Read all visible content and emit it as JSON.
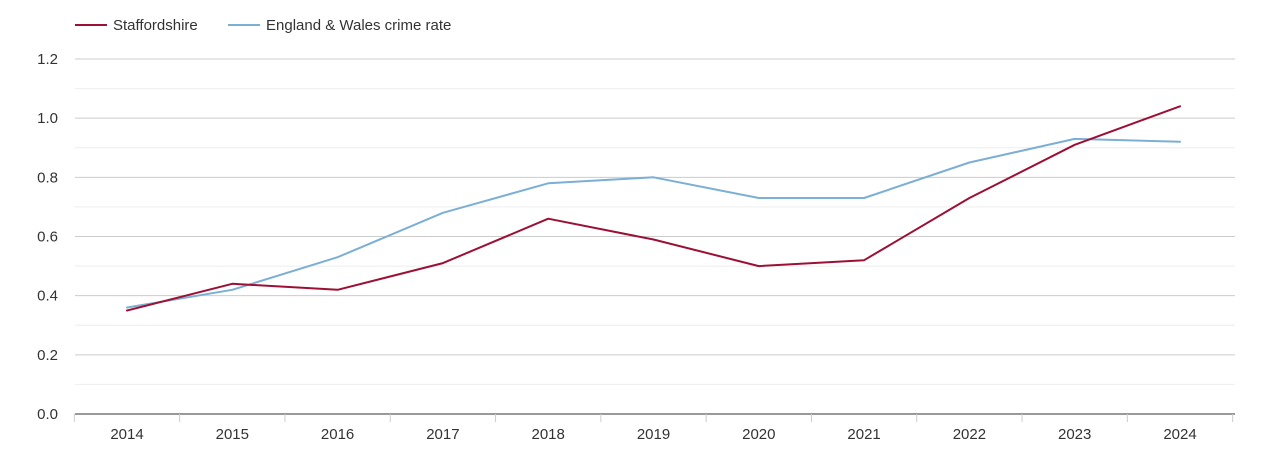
{
  "chart_data": {
    "type": "line",
    "title": "",
    "xlabel": "",
    "ylabel": "",
    "x": [
      "2014",
      "2015",
      "2016",
      "2017",
      "2018",
      "2019",
      "2020",
      "2021",
      "2022",
      "2023",
      "2024"
    ],
    "ylim": [
      0,
      1.2
    ],
    "y_ticks": [
      "0.0",
      "0.2",
      "0.4",
      "0.6",
      "0.8",
      "1.0",
      "1.2"
    ],
    "y_tick_values": [
      0,
      0.2,
      0.4,
      0.6,
      0.8,
      1.0,
      1.2
    ],
    "grid": true,
    "legend_position": "top-left",
    "series": [
      {
        "name": "Staffordshire",
        "color": "#9b1034",
        "values": [
          0.35,
          0.44,
          0.42,
          0.51,
          0.66,
          0.59,
          0.5,
          0.52,
          0.73,
          0.91,
          1.04
        ]
      },
      {
        "name": "England & Wales crime rate",
        "color": "#7bafd4",
        "values": [
          0.36,
          0.42,
          0.53,
          0.68,
          0.78,
          0.8,
          0.73,
          0.73,
          0.85,
          0.93,
          0.92
        ]
      }
    ]
  }
}
